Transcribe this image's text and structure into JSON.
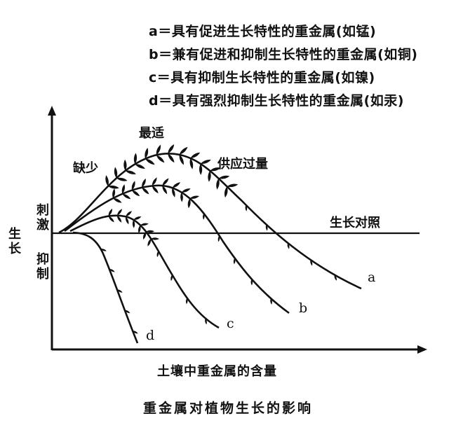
{
  "legend": [
    {
      "key": "a",
      "text": "a＝具有促进生长特性的重金属(如锰)"
    },
    {
      "key": "b",
      "text": "b＝兼有促进和抑制生长特性的重金属(如铜)"
    },
    {
      "key": "c",
      "text": "c＝具有抑制生长特性的重金属(如镍)"
    },
    {
      "key": "d",
      "text": "d＝具有强烈抑制生长特性的重金属(如汞)"
    }
  ],
  "annotations": {
    "deficiency": "缺少",
    "optimal": "最适",
    "excess": "供应过量",
    "control": "生长对照"
  },
  "y_axis": {
    "label": "生长",
    "upper": "刺激",
    "lower": "抑制"
  },
  "x_axis": {
    "label": "土壤中重金属的含量"
  },
  "curve_labels": {
    "a": "a",
    "b": "b",
    "c": "c",
    "d": "d"
  },
  "caption": "重金属对植物生长的影响"
}
